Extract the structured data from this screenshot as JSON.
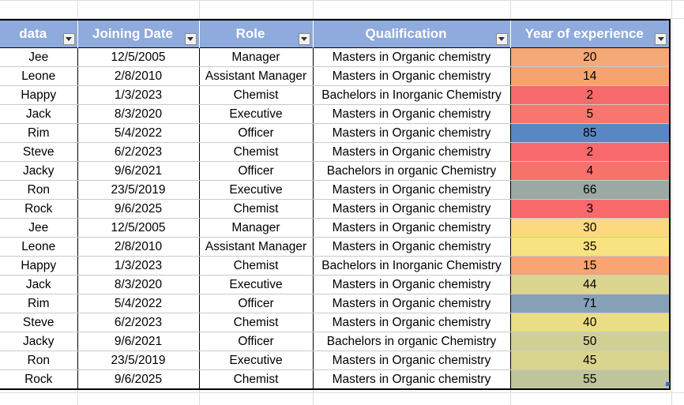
{
  "sheet": {
    "headers": [
      "data",
      "Joining Date",
      "Role",
      "Qualification",
      "Year of experience"
    ],
    "rows": [
      {
        "name": "Jee",
        "date": "12/5/2005",
        "role": "Manager",
        "qual": "Masters in Organic chemistry",
        "exp": "20",
        "color": "#f4a977"
      },
      {
        "name": "Leone",
        "date": "2/8/2010",
        "role": "Assistant Manager",
        "qual": "Masters in Organic chemistry",
        "exp": "14",
        "color": "#f7a271"
      },
      {
        "name": "Happy",
        "date": "1/3/2023",
        "role": "Chemist",
        "qual": "Bachelors in Inorganic Chemistry",
        "exp": "2",
        "color": "#f8696b"
      },
      {
        "name": "Jack",
        "date": "8/3/2020",
        "role": "Executive",
        "qual": "Masters in Organic chemistry",
        "exp": "5",
        "color": "#f8766d"
      },
      {
        "name": "Rim",
        "date": "5/4/2022",
        "role": "Officer",
        "qual": "Masters in Organic chemistry",
        "exp": "85",
        "color": "#5b86c4"
      },
      {
        "name": "Steve",
        "date": "6/2/2023",
        "role": "Chemist",
        "qual": "Masters in Organic chemistry",
        "exp": "2",
        "color": "#f8696b"
      },
      {
        "name": "Jacky",
        "date": "9/6/2021",
        "role": "Officer",
        "qual": "Bachelors in organic Chemistry",
        "exp": "4",
        "color": "#f8726c"
      },
      {
        "name": "Ron",
        "date": "23/5/2019",
        "role": "Executive",
        "qual": "Masters in Organic chemistry",
        "exp": "66",
        "color": "#9aa9a3"
      },
      {
        "name": "Rock",
        "date": "9/6/2025",
        "role": "Chemist",
        "qual": "Masters in Organic chemistry",
        "exp": "3",
        "color": "#f8696b"
      },
      {
        "name": "Jee",
        "date": "12/5/2005",
        "role": "Manager",
        "qual": "Masters in Organic chemistry",
        "exp": "30",
        "color": "#fcd97f"
      },
      {
        "name": "Leone",
        "date": "2/8/2010",
        "role": "Assistant Manager",
        "qual": "Masters in Organic chemistry",
        "exp": "35",
        "color": "#f9e280"
      },
      {
        "name": "Happy",
        "date": "1/3/2023",
        "role": "Chemist",
        "qual": "Bachelors in Inorganic Chemistry",
        "exp": "15",
        "color": "#f9a472"
      },
      {
        "name": "Jack",
        "date": "8/3/2020",
        "role": "Executive",
        "qual": "Masters in Organic chemistry",
        "exp": "44",
        "color": "#dcd58f"
      },
      {
        "name": "Rim",
        "date": "5/4/2022",
        "role": "Officer",
        "qual": "Masters in Organic chemistry",
        "exp": "71",
        "color": "#86a0b7"
      },
      {
        "name": "Steve",
        "date": "6/2/2023",
        "role": "Chemist",
        "qual": "Masters in Organic chemistry",
        "exp": "40",
        "color": "#ebdd86"
      },
      {
        "name": "Jacky",
        "date": "9/6/2021",
        "role": "Officer",
        "qual": "Bachelors in organic Chemistry",
        "exp": "50",
        "color": "#cfd194"
      },
      {
        "name": "Ron",
        "date": "23/5/2019",
        "role": "Executive",
        "qual": "Masters in Organic chemistry",
        "exp": "45",
        "color": "#d9d48e"
      },
      {
        "name": "Rock",
        "date": "9/6/2025",
        "role": "Chemist",
        "qual": "Masters in Organic chemistry",
        "exp": "55",
        "color": "#bfc49b"
      }
    ]
  }
}
